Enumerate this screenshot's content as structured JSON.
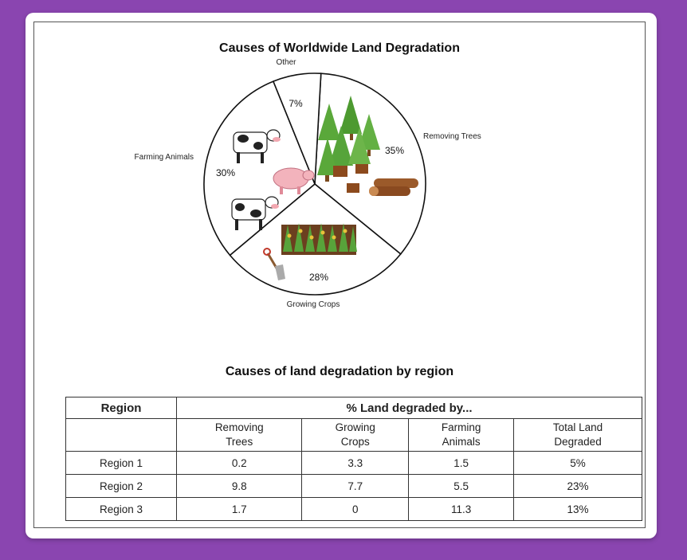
{
  "pie_title": "Causes of Worldwide Land Degradation",
  "table_title": "Causes of land degradation by region",
  "chart_data": [
    {
      "type": "pie",
      "title": "Causes of Worldwide Land Degradation",
      "slices": [
        {
          "label": "Removing Trees",
          "value": 35,
          "value_label": "35%",
          "icon": "trees-and-logs-icon"
        },
        {
          "label": "Growing Crops",
          "value": 28,
          "value_label": "28%",
          "icon": "crops-and-shovel-icon"
        },
        {
          "label": "Farming Animals",
          "value": 30,
          "value_label": "30%",
          "icon": "cows-and-pig-icon"
        },
        {
          "label": "Other",
          "value": 7,
          "value_label": "7%",
          "icon": ""
        }
      ],
      "colors": {
        "slice_fill": "#ffffff",
        "outline": "#111111"
      }
    },
    {
      "type": "table",
      "title": "Causes of land degradation by region",
      "header": {
        "region": "Region",
        "group": "% Land degraded by..."
      },
      "columns": [
        "Removing\nTrees",
        "Growing\nCrops",
        "Farming\nAnimals",
        "Total Land\nDegraded"
      ],
      "rows": [
        {
          "region": "Region 1",
          "values": [
            "0.2",
            "3.3",
            "1.5",
            "5%"
          ]
        },
        {
          "region": "Region 2",
          "values": [
            "9.8",
            "7.7",
            "5.5",
            "23%"
          ]
        },
        {
          "region": "Region 3",
          "values": [
            "1.7",
            "0",
            "11.3",
            "13%"
          ]
        }
      ]
    }
  ]
}
